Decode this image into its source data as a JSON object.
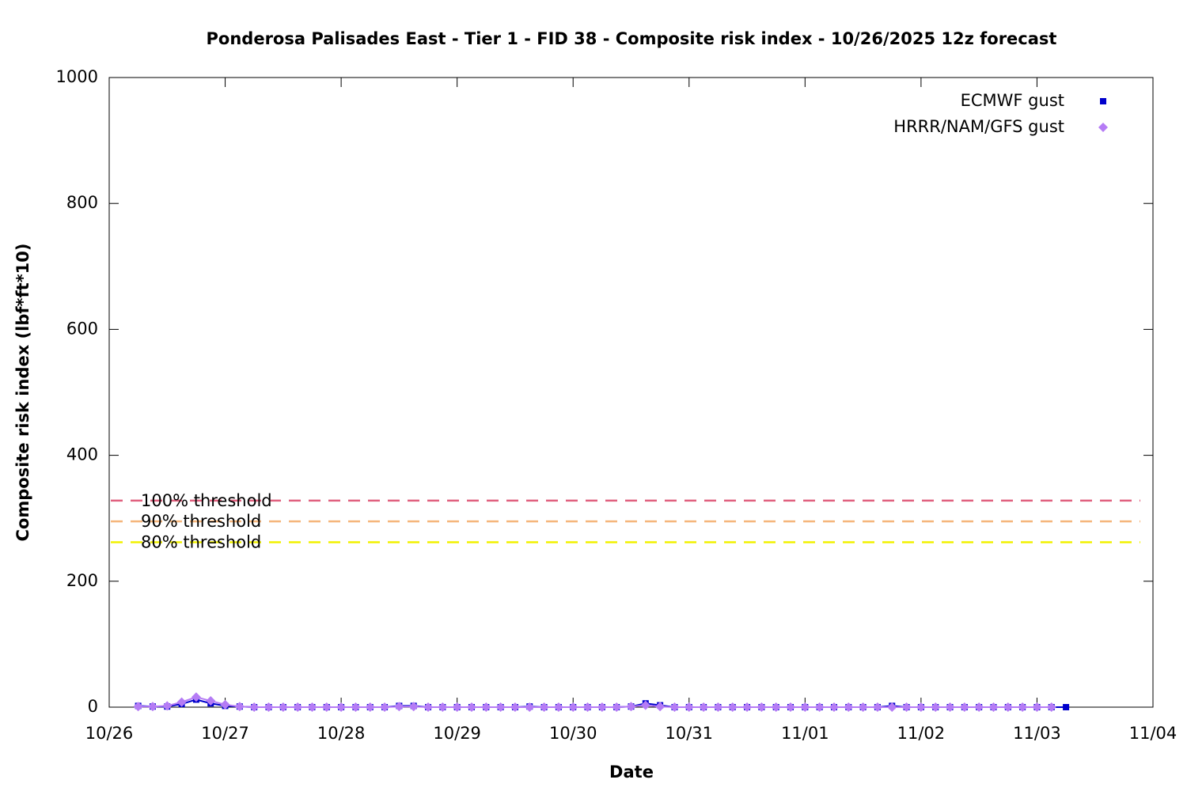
{
  "chart_data": {
    "type": "line",
    "title": "Ponderosa Palisades East - Tier 1 - FID 38 - Composite risk index - 10/26/2025 12z forecast",
    "xlabel": "Date",
    "ylabel": "Composite risk index (lbf*ft*10)",
    "xlim": [
      0,
      9
    ],
    "xticks": [
      {
        "value": 0,
        "label": "10/26"
      },
      {
        "value": 1,
        "label": "10/27"
      },
      {
        "value": 2,
        "label": "10/28"
      },
      {
        "value": 3,
        "label": "10/29"
      },
      {
        "value": 4,
        "label": "10/30"
      },
      {
        "value": 5,
        "label": "10/31"
      },
      {
        "value": 6,
        "label": "11/01"
      },
      {
        "value": 7,
        "label": "11/02"
      },
      {
        "value": 8,
        "label": "11/03"
      },
      {
        "value": 9,
        "label": "11/04"
      }
    ],
    "ylim": [
      0,
      1000
    ],
    "yticks": [
      0,
      200,
      400,
      600,
      800,
      1000
    ],
    "legend": "top right",
    "series": [
      {
        "name": "ECMWF gust",
        "color": "#0000cc",
        "marker": "square",
        "x": [
          0.25,
          0.375,
          0.5,
          0.625,
          0.75,
          0.875,
          1,
          1.125,
          1.25,
          1.375,
          1.5,
          1.625,
          1.75,
          1.875,
          2,
          2.125,
          2.25,
          2.375,
          2.5,
          2.625,
          2.75,
          2.875,
          3,
          3.125,
          3.25,
          3.375,
          3.5,
          3.625,
          3.75,
          3.875,
          4,
          4.125,
          4.25,
          4.375,
          4.5,
          4.625,
          4.75,
          4.875,
          5,
          5.125,
          5.25,
          5.375,
          5.5,
          5.625,
          5.75,
          5.875,
          6,
          6.125,
          6.25,
          6.375,
          6.5,
          6.625,
          6.75,
          6.875,
          7,
          7.125,
          7.25,
          7.375,
          7.5,
          7.625,
          7.75,
          7.875,
          8,
          8.125,
          8.25
        ],
        "values": [
          2,
          1,
          1,
          5,
          12,
          6,
          2,
          1,
          0,
          0,
          0,
          0,
          0,
          0,
          0,
          0,
          0,
          0,
          2,
          2,
          0,
          0,
          0,
          0,
          0,
          0,
          0,
          1,
          0,
          0,
          0,
          0,
          0,
          0,
          1,
          6,
          3,
          0,
          0,
          0,
          0,
          0,
          0,
          0,
          0,
          0,
          0,
          0,
          0,
          0,
          0,
          0,
          2,
          0,
          0,
          0,
          0,
          0,
          0,
          0,
          0,
          0,
          0,
          0,
          0
        ]
      },
      {
        "name": "HRRR/NAM/GFS gust",
        "color": "#b57cf5",
        "marker": "diamond",
        "x": [
          0.25,
          0.375,
          0.5,
          0.625,
          0.75,
          0.875,
          1,
          1.125,
          1.25,
          1.375,
          1.5,
          1.625,
          1.75,
          1.875,
          2,
          2.125,
          2.25,
          2.375,
          2.5,
          2.625,
          2.75,
          2.875,
          3,
          3.125,
          3.25,
          3.375,
          3.5,
          3.625,
          3.75,
          3.875,
          4,
          4.125,
          4.25,
          4.375,
          4.5,
          4.625,
          4.75,
          4.875,
          5,
          5.125,
          5.25,
          5.375,
          5.5,
          5.625,
          5.75,
          5.875,
          6,
          6.125,
          6.25,
          6.375,
          6.5,
          6.625,
          6.75,
          6.875,
          7,
          7.125,
          7.25,
          7.375,
          7.5,
          7.625,
          7.75,
          7.875,
          8,
          8.125
        ],
        "values": [
          1,
          1,
          2,
          8,
          16,
          10,
          4,
          1,
          0,
          0,
          0,
          0,
          0,
          0,
          0,
          0,
          0,
          0,
          1,
          1,
          0,
          0,
          0,
          0,
          0,
          0,
          0,
          0,
          0,
          0,
          0,
          0,
          0,
          0,
          1,
          3,
          1,
          0,
          0,
          0,
          0,
          0,
          0,
          0,
          0,
          0,
          0,
          0,
          0,
          0,
          0,
          0,
          0,
          0,
          0,
          0,
          0,
          0,
          0,
          0,
          0,
          0,
          0,
          0
        ]
      }
    ],
    "thresholds": [
      {
        "label": "100% threshold",
        "value": 328,
        "color": "#e0607e"
      },
      {
        "label": "90% threshold",
        "value": 295,
        "color": "#f5b479"
      },
      {
        "label": "80% threshold",
        "value": 262,
        "color": "#f2f200"
      }
    ]
  }
}
